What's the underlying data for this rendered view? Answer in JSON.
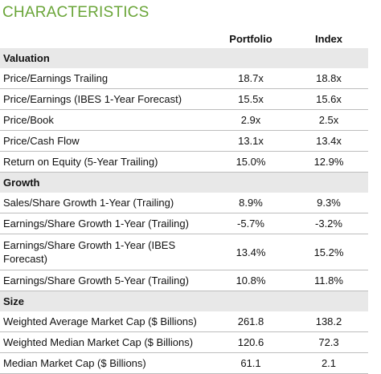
{
  "title": "CHARACTERISTICS",
  "columns": {
    "portfolio": "Portfolio",
    "index": "Index"
  },
  "sections": [
    {
      "name": "Valuation",
      "rows": [
        {
          "label": "Price/Earnings Trailing",
          "portfolio": "18.7x",
          "index": "18.8x"
        },
        {
          "label": "Price/Earnings (IBES 1-Year Forecast)",
          "portfolio": "15.5x",
          "index": "15.6x"
        },
        {
          "label": "Price/Book",
          "portfolio": "2.9x",
          "index": "2.5x"
        },
        {
          "label": "Price/Cash Flow",
          "portfolio": "13.1x",
          "index": "13.4x"
        },
        {
          "label": "Return on Equity (5-Year Trailing)",
          "portfolio": "15.0%",
          "index": "12.9%"
        }
      ]
    },
    {
      "name": "Growth",
      "rows": [
        {
          "label": "Sales/Share Growth 1-Year (Trailing)",
          "portfolio": "8.9%",
          "index": "9.3%"
        },
        {
          "label": "Earnings/Share Growth 1-Year (Trailing)",
          "portfolio": "-5.7%",
          "index": "-3.2%"
        },
        {
          "label": "Earnings/Share Growth 1-Year (IBES Forecast)",
          "portfolio": "13.4%",
          "index": "15.2%"
        },
        {
          "label": "Earnings/Share Growth 5-Year (Trailing)",
          "portfolio": "10.8%",
          "index": "11.8%"
        }
      ]
    },
    {
      "name": "Size",
      "rows": [
        {
          "label": "Weighted Average Market Cap ($ Billions)",
          "portfolio": "261.8",
          "index": "138.2"
        },
        {
          "label": "Weighted Median Market Cap ($ Billions)",
          "portfolio": "120.6",
          "index": "72.3"
        },
        {
          "label": "Median Market Cap ($ Billions)",
          "portfolio": "61.1",
          "index": "2.1"
        }
      ]
    }
  ],
  "colors": {
    "title": "#6aa538",
    "section_bg": "#e8e8e8",
    "rule": "#bdbdbd"
  }
}
